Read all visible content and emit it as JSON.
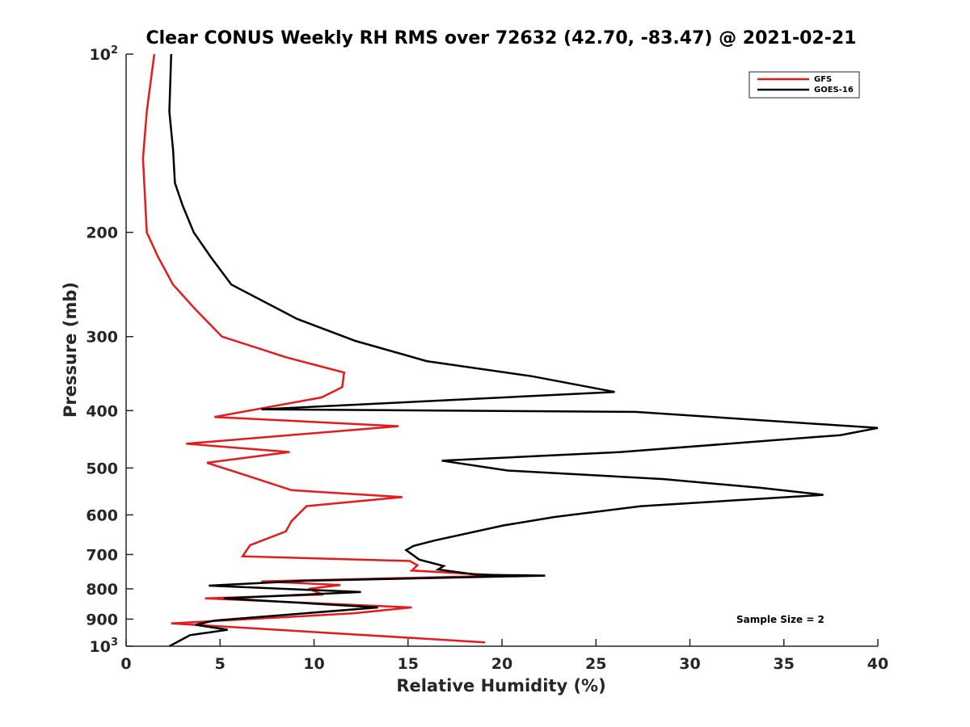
{
  "chart_data": {
    "type": "line",
    "title": "Clear CONUS Weekly RH RMS over 72632 (42.70, -83.47) @ 2021-02-21",
    "xlabel": "Relative Humidity (%)",
    "ylabel": "Pressure (mb)",
    "xlim": [
      0,
      40
    ],
    "ylim": [
      1000,
      100
    ],
    "yscale": "log",
    "y_reversed": true,
    "grid": false,
    "legend_position": "top-right",
    "x_ticks": [
      "0",
      "5",
      "10",
      "15",
      "20",
      "25",
      "30",
      "35",
      "40"
    ],
    "y_ticks": [
      {
        "value": 100,
        "base": "10",
        "exp": "2"
      },
      {
        "value": 200,
        "label": "200"
      },
      {
        "value": 300,
        "label": "300"
      },
      {
        "value": 400,
        "label": "400"
      },
      {
        "value": 500,
        "label": "500"
      },
      {
        "value": 600,
        "label": "600"
      },
      {
        "value": 700,
        "label": "700"
      },
      {
        "value": 800,
        "label": "800"
      },
      {
        "value": 900,
        "label": "900"
      },
      {
        "value": 1000,
        "base": "10",
        "exp": "3"
      }
    ],
    "annotation": "Sample Size = 2",
    "series": [
      {
        "name": "GFS",
        "color": "#e41a1c",
        "points": [
          [
            1.5,
            100
          ],
          [
            1.1,
            125
          ],
          [
            0.9,
            150
          ],
          [
            1.1,
            200
          ],
          [
            1.7,
            220
          ],
          [
            2.5,
            245
          ],
          [
            3.7,
            270
          ],
          [
            5.1,
            300
          ],
          [
            8.5,
            325
          ],
          [
            11.6,
            345
          ],
          [
            11.5,
            365
          ],
          [
            10.4,
            380
          ],
          [
            4.7,
            410
          ],
          [
            14.5,
            425
          ],
          [
            3.2,
            455
          ],
          [
            8.7,
            470
          ],
          [
            4.3,
            490
          ],
          [
            6.0,
            510
          ],
          [
            8.8,
            545
          ],
          [
            14.7,
            560
          ],
          [
            9.6,
            580
          ],
          [
            8.8,
            615
          ],
          [
            8.5,
            640
          ],
          [
            6.6,
            675
          ],
          [
            6.2,
            705
          ],
          [
            15.1,
            718
          ],
          [
            15.5,
            730
          ],
          [
            15.2,
            745
          ],
          [
            20.1,
            760
          ],
          [
            7.2,
            777
          ],
          [
            11.4,
            788
          ],
          [
            9.7,
            800
          ],
          [
            10.5,
            818
          ],
          [
            4.2,
            830
          ],
          [
            15.2,
            860
          ],
          [
            12.1,
            880
          ],
          [
            2.4,
            915
          ],
          [
            19.1,
            985
          ]
        ]
      },
      {
        "name": "GOES-16",
        "color": "#000000",
        "points": [
          [
            2.4,
            100
          ],
          [
            2.3,
            125
          ],
          [
            2.5,
            145
          ],
          [
            2.6,
            165
          ],
          [
            3.0,
            180
          ],
          [
            3.6,
            200
          ],
          [
            4.5,
            220
          ],
          [
            5.6,
            245
          ],
          [
            9.1,
            280
          ],
          [
            12.2,
            305
          ],
          [
            16.0,
            330
          ],
          [
            21.6,
            350
          ],
          [
            26.0,
            372
          ],
          [
            7.2,
            398
          ],
          [
            27.1,
            402
          ],
          [
            40.0,
            428
          ],
          [
            38.0,
            440
          ],
          [
            26.3,
            470
          ],
          [
            16.8,
            486
          ],
          [
            20.3,
            505
          ],
          [
            28.6,
            522
          ],
          [
            33.7,
            540
          ],
          [
            37.1,
            555
          ],
          [
            27.4,
            580
          ],
          [
            22.8,
            605
          ],
          [
            20.1,
            625
          ],
          [
            16.4,
            663
          ],
          [
            15.3,
            677
          ],
          [
            14.9,
            688
          ],
          [
            15.6,
            714
          ],
          [
            16.9,
            732
          ],
          [
            16.6,
            742
          ],
          [
            18.6,
            757
          ],
          [
            22.3,
            760
          ],
          [
            9.6,
            775
          ],
          [
            4.4,
            790
          ],
          [
            12.5,
            810
          ],
          [
            5.2,
            830
          ],
          [
            13.4,
            860
          ],
          [
            4.7,
            905
          ],
          [
            3.7,
            920
          ],
          [
            5.4,
            938
          ],
          [
            3.4,
            958
          ],
          [
            2.3,
            1000
          ]
        ]
      }
    ]
  }
}
